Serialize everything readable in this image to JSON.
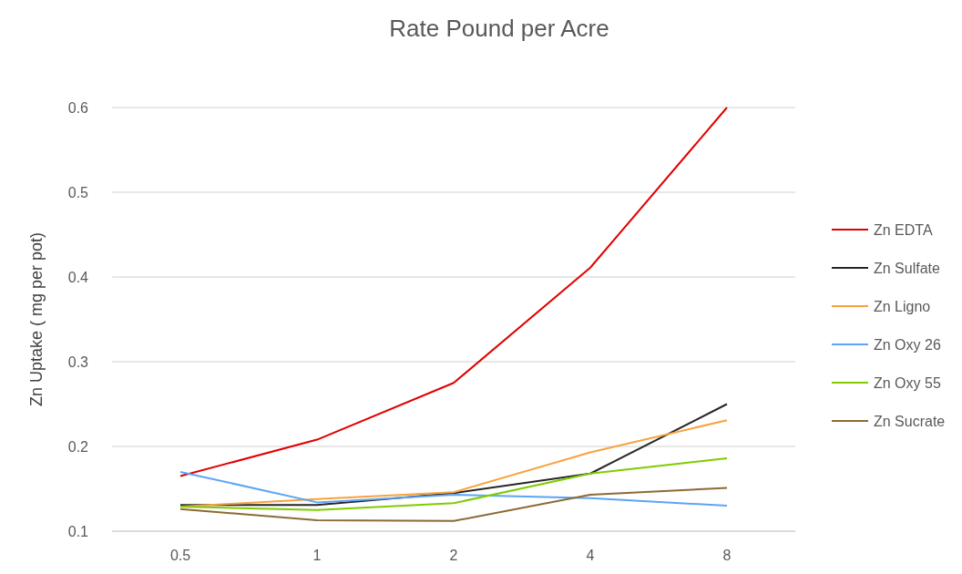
{
  "chart_data": {
    "type": "line",
    "title": "Rate Pound per Acre",
    "ylabel": "Zn Uptake ( mg per pot)",
    "categories": [
      "0.5",
      "1",
      "2",
      "4",
      "8"
    ],
    "series": [
      {
        "name": "Zn EDTA",
        "color": "#e00000",
        "values": [
          0.165,
          0.208,
          0.275,
          0.411,
          0.6
        ]
      },
      {
        "name": "Zn Sulfate",
        "color": "#262626",
        "values": [
          0.131,
          0.131,
          0.145,
          0.168,
          0.25
        ]
      },
      {
        "name": "Zn Ligno",
        "color": "#f9a23c",
        "values": [
          0.129,
          0.138,
          0.146,
          0.193,
          0.231
        ]
      },
      {
        "name": "Zn Oxy 26",
        "color": "#5aa5f5",
        "values": [
          0.17,
          0.134,
          0.143,
          0.139,
          0.13
        ]
      },
      {
        "name": "Zn Oxy 55",
        "color": "#7fcc00",
        "values": [
          0.129,
          0.125,
          0.133,
          0.168,
          0.186
        ]
      },
      {
        "name": "Zn Sucrate",
        "color": "#8c6a35",
        "values": [
          0.126,
          0.113,
          0.112,
          0.143,
          0.151
        ]
      }
    ],
    "ylim": [
      0.1,
      0.6
    ],
    "yticks": [
      0.1,
      0.2,
      0.3,
      0.4,
      0.5,
      0.6
    ],
    "grid": "y",
    "legend": "right",
    "marker": "none",
    "line_style": "solid"
  }
}
